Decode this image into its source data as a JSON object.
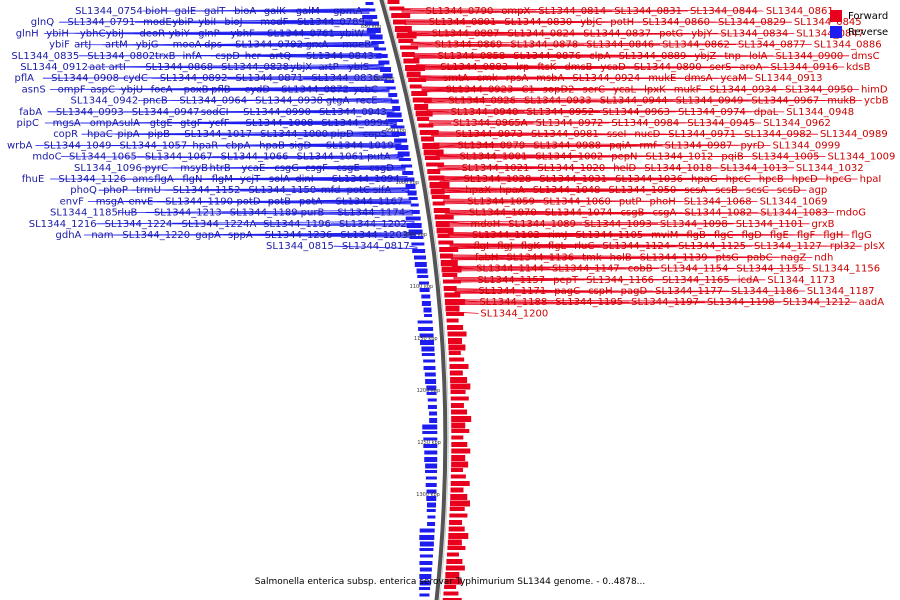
{
  "legend": {
    "forward": {
      "label": "Forward",
      "color": "#e8001c"
    },
    "reverse": {
      "label": "Reverse",
      "color": "#1d1df0"
    }
  },
  "caption": "Salmonella enterica subsp. enterica serovar Typhimurium SL1344 genome. - 0..4878...",
  "scale_ticks": [
    "850 kbp",
    "900 kbp",
    "950 kbp",
    "1000 kbp",
    "1050 kbp",
    "1100 kbp",
    "1150 kbp",
    "1200 kbp",
    "1250 kbp",
    "1300 kbp"
  ],
  "reverse_labels": [
    "gpmA",
    "galM",
    "galK",
    "bioA",
    "galT",
    "galE",
    "bioH",
    "SL1344_0754",
    "SL1344_0789",
    "modF",
    "bioJ",
    "ybiI",
    "ybiP",
    "modE",
    "SL1344_0791",
    "glnQ",
    "ybiW",
    "SL1344_0761",
    "ybhF",
    "glnP",
    "ybiY",
    "deoR",
    "ybiJ",
    "ybhC",
    "ybiH",
    "glnH",
    "moeB",
    "grxA",
    "SL1344_0792",
    "dps",
    "moeA",
    "ybjG",
    "artM",
    "artJ",
    "ybiF",
    "SL1344_0843",
    "artQ",
    "hcr",
    "cspD",
    "infA",
    "trxB",
    "SL1344_0802",
    "SL1344_0835",
    "ybiS",
    "artP",
    "ybjX",
    "SL1344_0828",
    "SL1344_0868",
    "artI",
    "aat",
    "SL1344_0912",
    "SL1344_0836",
    "SL1344_0871",
    "SL1344_0892",
    "cydC",
    "SL1344_0908",
    "pflA",
    "ycbC",
    "SL1344_0872",
    "cydD",
    "pflB",
    "poxB",
    "focA",
    "ybjU",
    "aspC",
    "ompF",
    "asnS",
    "recE",
    "gtgA",
    "SL1344_0938",
    "SL1344_0964",
    "pncB",
    "SL1344_0942",
    "SL1344_0943",
    "SL1344_0990",
    "sodCI",
    "SL1344_0947",
    "SL1344_0993",
    "fabA",
    "SL1344_0994",
    "SL1344_1008",
    "ycfF",
    "gtgF",
    "gtgE",
    "sulA",
    "ompA",
    "mgsA",
    "pipC",
    "copS",
    "pipD",
    "SL1344_1000",
    "SL1344_1017",
    "pipB",
    "pipA",
    "hpaC",
    "copR",
    "SL1344_1019",
    "sigD",
    "hpaB",
    "cbpA",
    "hpaR",
    "SL1344_1057",
    "SL1344_1049",
    "wrbA",
    "putA",
    "SL1344_1061",
    "SL1344_1066",
    "SL1344_1067",
    "SL1344_1065",
    "mdoC",
    "csgD",
    "csgE",
    "csgF",
    "csgG",
    "ycaE",
    "htrB",
    "msyB",
    "pyrC",
    "SL1344_1096",
    "SL1344_1094",
    "dinI",
    "solA",
    "ycjT",
    "flgM",
    "flgN",
    "flgA",
    "ams",
    "SL1344_1126",
    "fhuE",
    "sifA",
    "potC",
    "mfd",
    "SL1344_1150",
    "SL1344_1152",
    "trmU",
    "phoP",
    "phoQ",
    "SL1344_1167",
    "potA",
    "potB",
    "potD",
    "SL1344_1190",
    "envE",
    "msgA",
    "envF",
    "SL1344_1174",
    "purB",
    "SL1344_1189",
    "SL1344_1213",
    "rluB",
    "SL1344_1185",
    "SL1344_1202",
    "SL1344_1196",
    "SL1344_1224A",
    "SL1344_1224",
    "SL1344_1216",
    "SL1344_1203",
    "SL1344_1236",
    "sppA",
    "gapA",
    "SL1344_1220",
    "nam",
    "gdhA",
    "SL1344_0817",
    "SL1344_0815"
  ],
  "forward_labels": [
    "SL1344_0790",
    "ompX",
    "SL1344_0814",
    "SL1344_0831",
    "SL1344_0844",
    "SL1344_0861",
    "SL1344_0801",
    "SL1344_0830",
    "ybjC",
    "potH",
    "SL1344_0860",
    "SL1344_0829",
    "SL1344_0845",
    "SL1344_0887",
    "SL1344_0824",
    "SL1344_0837",
    "potG",
    "ybjY",
    "SL1344_0834",
    "SL1344_0847",
    "SL1344_0869",
    "SL1344_0878",
    "SL1344_0846",
    "SL1344_0862",
    "SL1344_0877",
    "SL1344_0886",
    "SL1344_0858",
    "SL1344_0876",
    "clpA",
    "SL1344_0889",
    "ybjZ",
    "tnp",
    "lolA",
    "SL1344_0900",
    "dmsC",
    "SL1344_0883",
    "lrp",
    "ftsK",
    "dmsB",
    "ycaD",
    "SL1344_0890",
    "serS",
    "aroA",
    "SL1344_0916",
    "kdsB",
    "smtA",
    "cmk",
    "rpsA",
    "msbA",
    "SL1344_0924",
    "mukE",
    "dmsA",
    "ycaM",
    "SL1344_0913",
    "SL1344_0923",
    "C1",
    "sopD2",
    "serC",
    "ycaL",
    "lpxK",
    "mukF",
    "SL1344_0934",
    "SL1344_0950",
    "himD",
    "SL1344_0926",
    "SL1344_0933",
    "SL1344_0944",
    "SL1344_0949",
    "SL1344_0967",
    "mukB",
    "ycbB",
    "SL1344_0940",
    "SL1344_0952",
    "SL1344_0963",
    "SL1344_0974",
    "dpaL",
    "SL1344_0948",
    "SL1344_0965A",
    "SL1344_0972",
    "SL1344_0984",
    "SL1344_0945",
    "SL1344_0962",
    "SL1344_0973",
    "SL1344_0981",
    "sseI",
    "nucD",
    "SL1344_0971",
    "SL1344_0982",
    "SL1344_0989",
    "SL1344_0979",
    "SL1344_0988",
    "pqiA",
    "rmf",
    "SL1344_0987",
    "pyrD",
    "SL1344_0999",
    "SL1344_1001",
    "SL1344_1002",
    "pepN",
    "SL1344_1012",
    "pqiB",
    "SL1344_1005",
    "SL1344_1009",
    "SL1344_1021",
    "SL1344_1020",
    "helD",
    "SL1344_1018",
    "SL1344_1013",
    "SL1344_1032",
    "SL1344_1028",
    "SL1344_1031",
    "SL1344_1036",
    "hpaG",
    "hpcC",
    "hpcB",
    "hpcD",
    "hpcG",
    "hpaI",
    "hpaX",
    "hpaA",
    "SL1344_1048",
    "SL1344_1050",
    "scsA",
    "scsB",
    "scsC",
    "scsD",
    "agp",
    "SL1344_1059",
    "SL1344_1060",
    "putP",
    "phoH",
    "SL1344_1068",
    "SL1344_1069",
    "SL1344_1070",
    "SL1344_1074",
    "csgB",
    "csgA",
    "SL1344_1082",
    "SL1344_1083",
    "mdoG",
    "mdoH",
    "SL1344_1089",
    "SL1344_1093",
    "SL1344_1098",
    "SL1344_1101",
    "grxB",
    "SL1344_1102",
    "rimJ",
    "SL1344_1105",
    "mviM",
    "flgB",
    "flgC",
    "flgD",
    "flgE",
    "flgF",
    "flgH",
    "flgG",
    "flgI",
    "flgJ",
    "flgK",
    "flgL",
    "rluC",
    "SL1344_1124",
    "SL1344_1125",
    "SL1344_1127",
    "rpl32",
    "plsX",
    "fabH",
    "SL1344_1136",
    "tmk",
    "holB",
    "SL1344_1139",
    "ptsG",
    "pabC",
    "nagZ",
    "ndh",
    "SL1344_1144",
    "SL1344_1147",
    "cobB",
    "SL1344_1154",
    "SL1344_1155",
    "SL1344_1156",
    "SL1344_1157",
    "pepT",
    "SL1344_1166",
    "SL1344_1165",
    "icdA",
    "SL1344_1173",
    "SL1344_1171",
    "pagC",
    "cspH",
    "pagD",
    "SL1344_1177",
    "SL1344_1186",
    "SL1344_1187",
    "SL1344_1188",
    "SL1344_1195",
    "SL1344_1197",
    "SL1344_1198",
    "SL1344_1212",
    "aadA",
    "SL1344_1200"
  ]
}
